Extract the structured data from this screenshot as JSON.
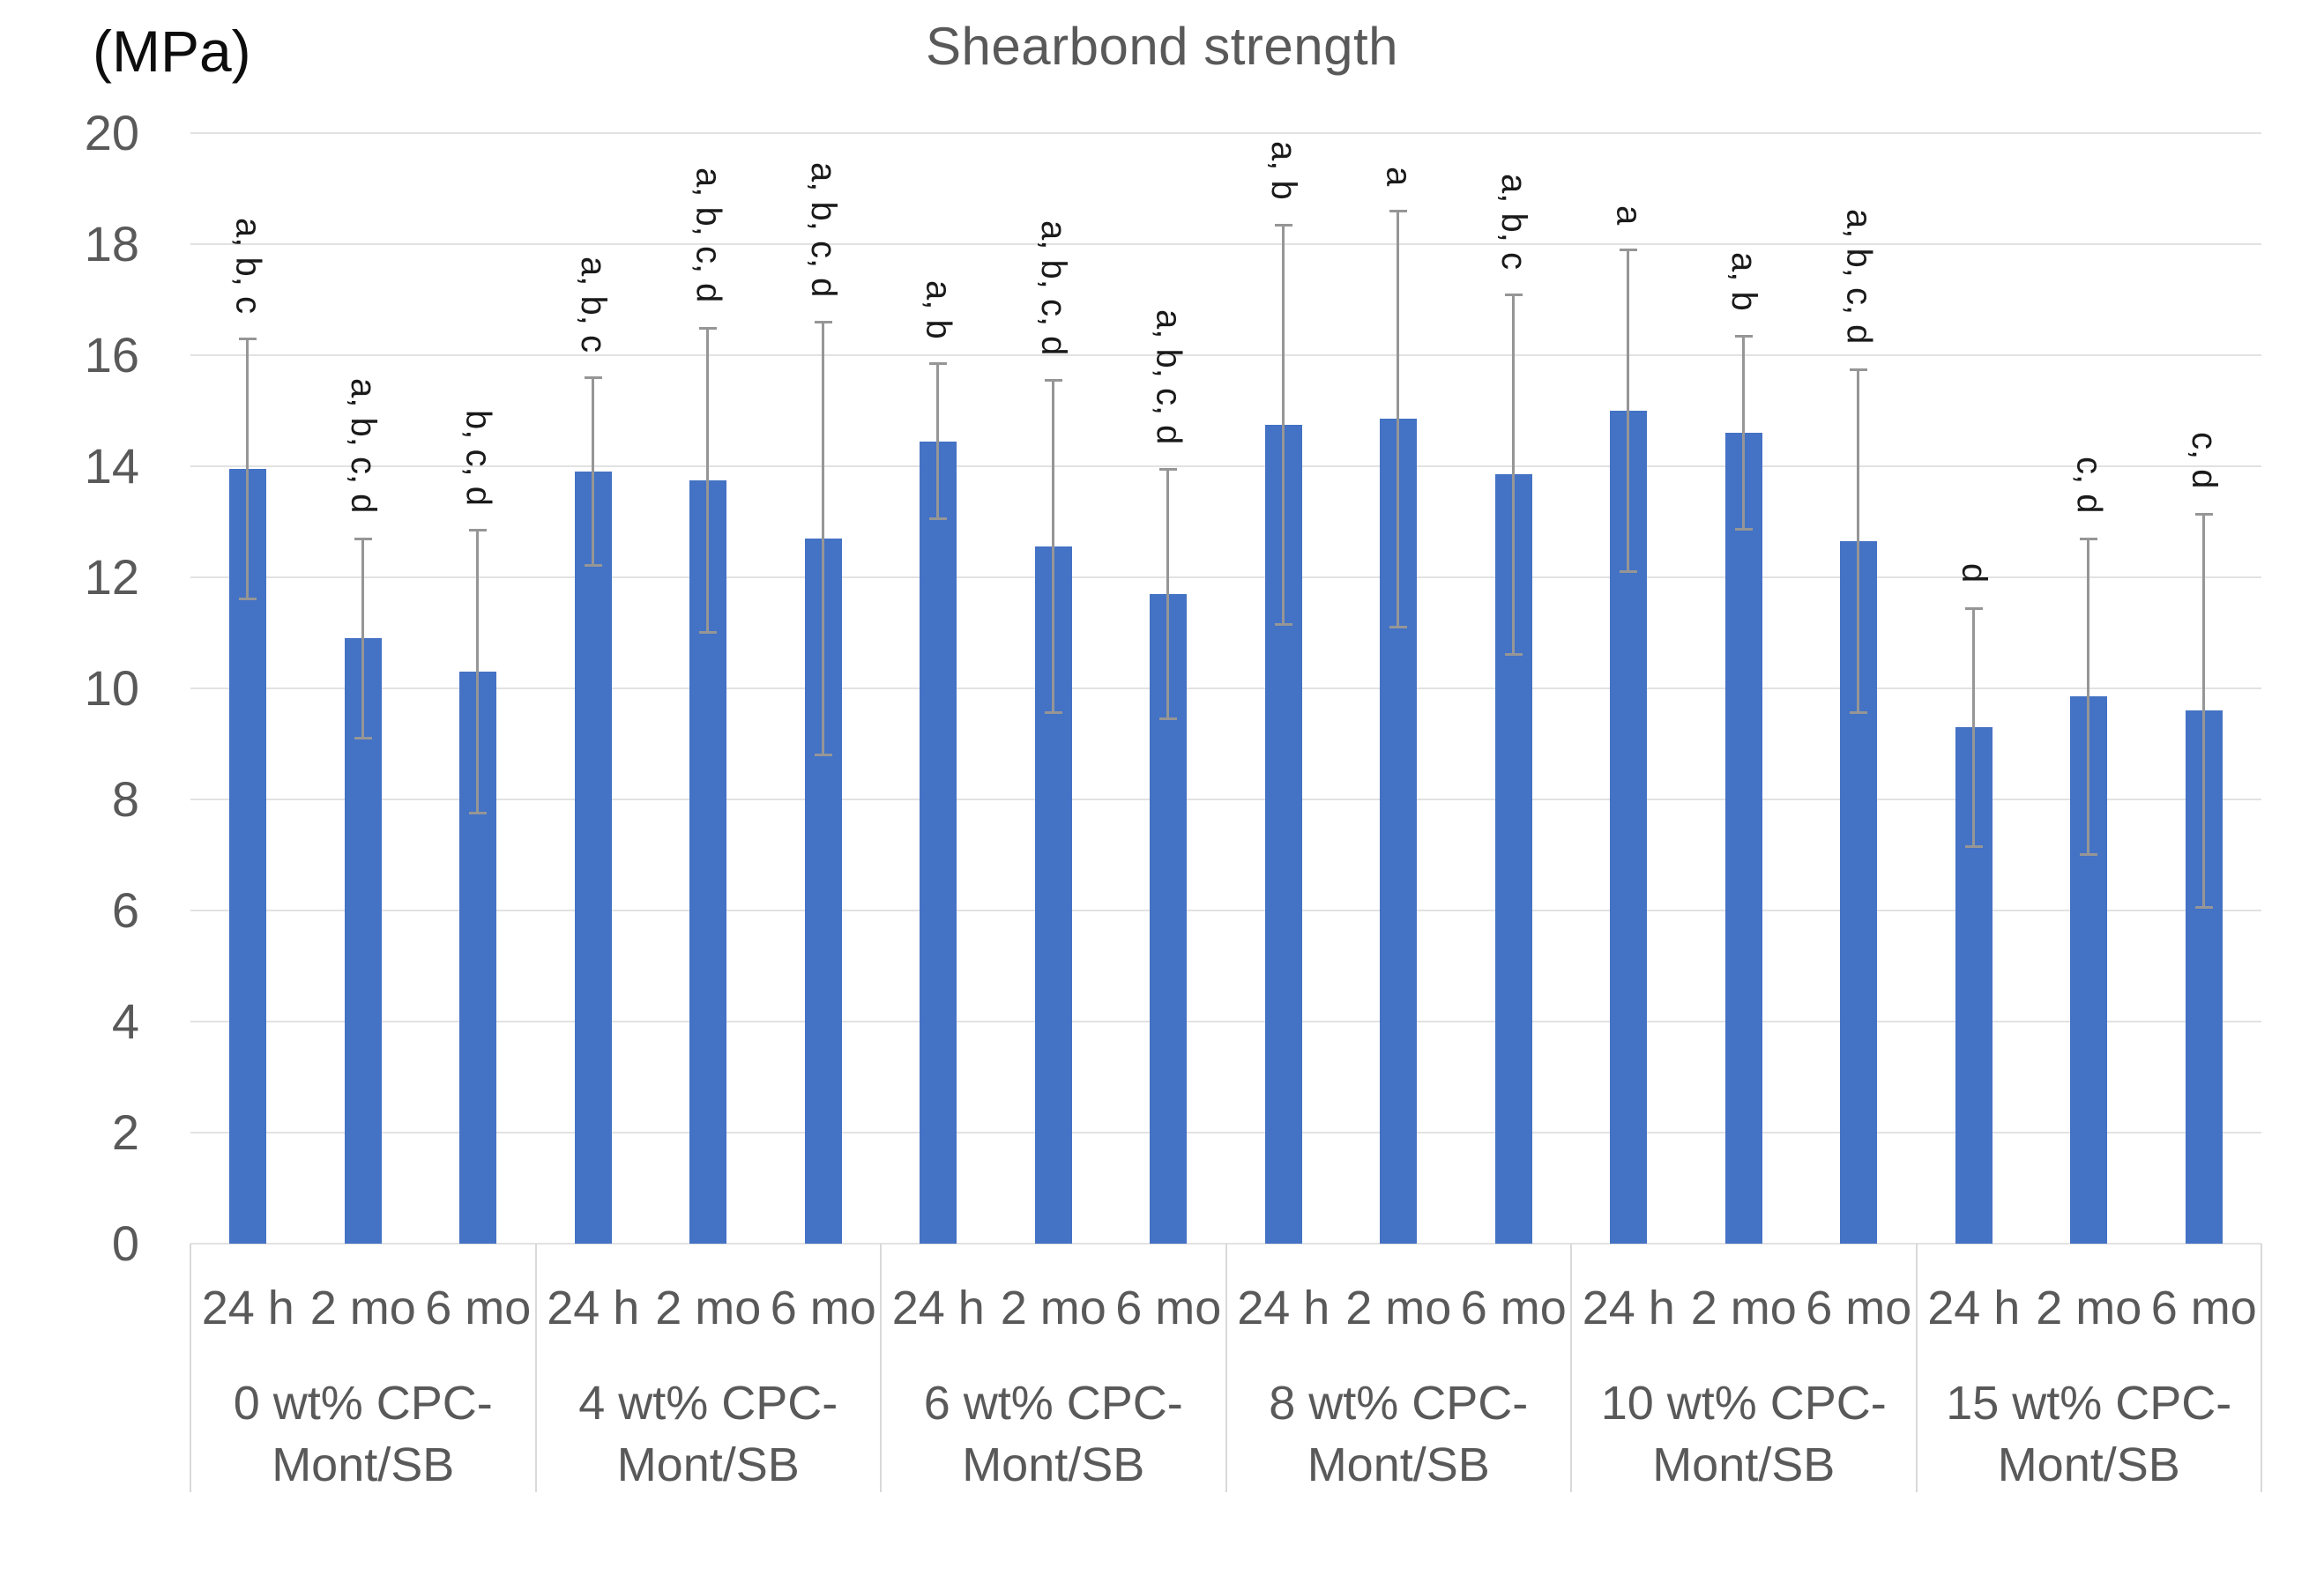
{
  "chart_data": {
    "type": "bar",
    "title": "Shearbond strength",
    "y_axis_unit": "(MPa)",
    "xlabel": "",
    "ylabel": "(MPa)",
    "ylim": [
      0,
      20
    ],
    "yticks": [
      0,
      2,
      4,
      6,
      8,
      10,
      12,
      14,
      16,
      18,
      20
    ],
    "grid": true,
    "legend": false,
    "error_bars": true,
    "time_labels": [
      "24 h",
      "2 mo",
      "6 mo"
    ],
    "groups": [
      {
        "label_lines": [
          "0 wt% CPC-",
          "Mont/SB"
        ],
        "bars": [
          {
            "time": "24 h",
            "value": 13.95,
            "error": 2.35,
            "sig": "a, b, c"
          },
          {
            "time": "2 mo",
            "value": 10.9,
            "error": 1.8,
            "sig": "a, b, c, d"
          },
          {
            "time": "6 mo",
            "value": 10.3,
            "error": 2.55,
            "sig": "b, c, d"
          }
        ]
      },
      {
        "label_lines": [
          "4 wt% CPC-",
          "Mont/SB"
        ],
        "bars": [
          {
            "time": "24 h",
            "value": 13.9,
            "error": 1.7,
            "sig": "a, b, c"
          },
          {
            "time": "2 mo",
            "value": 13.75,
            "error": 2.75,
            "sig": "a, b, c, d"
          },
          {
            "time": "6 mo",
            "value": 12.7,
            "error": 3.9,
            "sig": "a, b, c, d"
          }
        ]
      },
      {
        "label_lines": [
          "6 wt% CPC-",
          "Mont/SB"
        ],
        "bars": [
          {
            "time": "24 h",
            "value": 14.45,
            "error": 1.4,
            "sig": "a, b"
          },
          {
            "time": "2 mo",
            "value": 12.55,
            "error": 3.0,
            "sig": "a, b, c, d"
          },
          {
            "time": "6 mo",
            "value": 11.7,
            "error": 2.25,
            "sig": "a, b, c, d"
          }
        ]
      },
      {
        "label_lines": [
          "8 wt% CPC-",
          "Mont/SB"
        ],
        "bars": [
          {
            "time": "24 h",
            "value": 14.75,
            "error": 3.6,
            "sig": "a, b"
          },
          {
            "time": "2 mo",
            "value": 14.85,
            "error": 3.75,
            "sig": "a"
          },
          {
            "time": "6 mo",
            "value": 13.85,
            "error": 3.25,
            "sig": "a, b, c"
          }
        ]
      },
      {
        "label_lines": [
          "10 wt% CPC-",
          "Mont/SB"
        ],
        "bars": [
          {
            "time": "24 h",
            "value": 15.0,
            "error": 2.9,
            "sig": "a"
          },
          {
            "time": "2 mo",
            "value": 14.6,
            "error": 1.75,
            "sig": "a, b"
          },
          {
            "time": "6 mo",
            "value": 12.65,
            "error": 3.1,
            "sig": "a, b, c, d"
          }
        ]
      },
      {
        "label_lines": [
          "15 wt% CPC-",
          "Mont/SB"
        ],
        "bars": [
          {
            "time": "24 h",
            "value": 9.3,
            "error": 2.15,
            "sig": "d"
          },
          {
            "time": "2 mo",
            "value": 9.85,
            "error": 2.85,
            "sig": "c, d"
          },
          {
            "time": "6 mo",
            "value": 9.6,
            "error": 3.55,
            "sig": "c, d"
          }
        ]
      }
    ],
    "colors": {
      "bar": "#4472C4",
      "grid": "#E2E2E2",
      "axis_text": "#595959",
      "title_text": "#595959",
      "unit_text": "#0D0D0D",
      "error_bar": "#969696",
      "sig_text": "#1A1A1A",
      "separator": "#D9D9D9",
      "background": "#FFFFFF"
    }
  }
}
